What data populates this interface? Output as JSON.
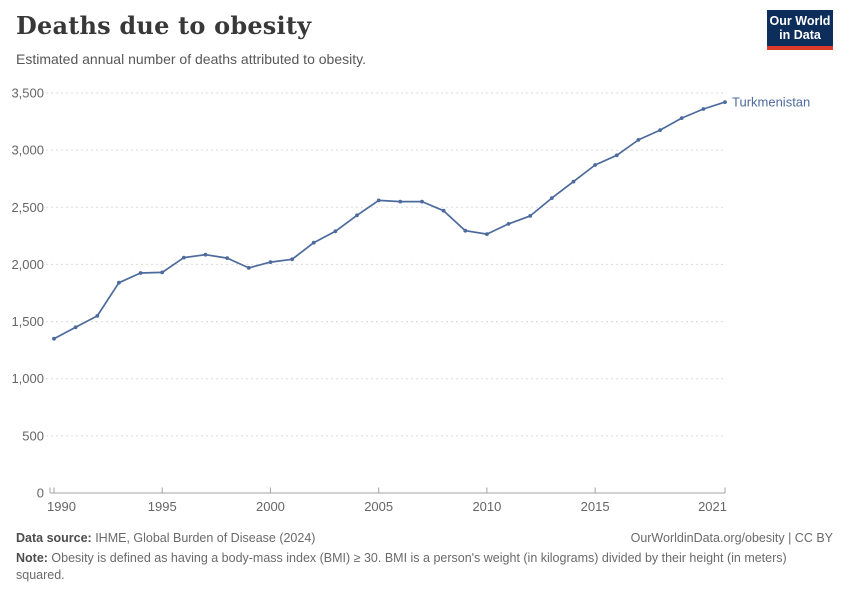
{
  "header": {
    "title": "Deaths due to obesity",
    "subtitle": "Estimated annual number of deaths attributed to obesity.",
    "logo": {
      "line1": "Our World",
      "line2": "in Data",
      "bg_color": "#0d2e5a",
      "accent_color": "#dc3b2a",
      "text_color": "#ffffff"
    }
  },
  "chart_data": {
    "type": "line",
    "title": "Deaths due to obesity",
    "subtitle": "Estimated annual number of deaths attributed to obesity.",
    "x": [
      1990,
      1991,
      1992,
      1993,
      1994,
      1995,
      1996,
      1997,
      1998,
      1999,
      2000,
      2001,
      2002,
      2003,
      2004,
      2005,
      2006,
      2007,
      2008,
      2009,
      2010,
      2011,
      2012,
      2013,
      2014,
      2015,
      2016,
      2017,
      2018,
      2019,
      2020,
      2021
    ],
    "series": [
      {
        "name": "Turkmenistan",
        "color": "#4C6A9C",
        "values": [
          1350,
          1450,
          1550,
          1840,
          1925,
          1930,
          2060,
          2085,
          2055,
          1970,
          2020,
          2045,
          2190,
          2290,
          2430,
          2560,
          2550,
          2550,
          2470,
          2295,
          2265,
          2355,
          2425,
          2580,
          2725,
          2870,
          2955,
          3090,
          3175,
          3280,
          3360,
          3420
        ]
      }
    ],
    "xlabel": "",
    "ylabel": "",
    "ylim": [
      0,
      3500
    ],
    "xlim": [
      1990,
      2021
    ],
    "yticks": [
      0,
      500,
      1000,
      1500,
      2000,
      2500,
      3000,
      3500
    ],
    "ytick_labels": [
      "0",
      "500",
      "1,000",
      "1,500",
      "2,000",
      "2,500",
      "3,000",
      "3,500"
    ],
    "xticks": [
      1990,
      1995,
      2000,
      2005,
      2010,
      2015,
      2021
    ],
    "grid": "horizontal-dashed",
    "legend": "series-end-label"
  },
  "footer": {
    "source_label": "Data source:",
    "source_value": " IHME, Global Burden of Disease (2024)",
    "attribution": "OurWorldinData.org/obesity | CC BY",
    "note_label": "Note:",
    "note_value": " Obesity is defined as having a body-mass index (BMI) ≥ 30. BMI is a person's weight (in kilograms) divided by their height (in meters) squared."
  },
  "colors": {
    "axis_text": "#666666",
    "gridline": "#dcdcdc",
    "axis_line": "#a3a3a3",
    "series": "#4C6A9C"
  }
}
